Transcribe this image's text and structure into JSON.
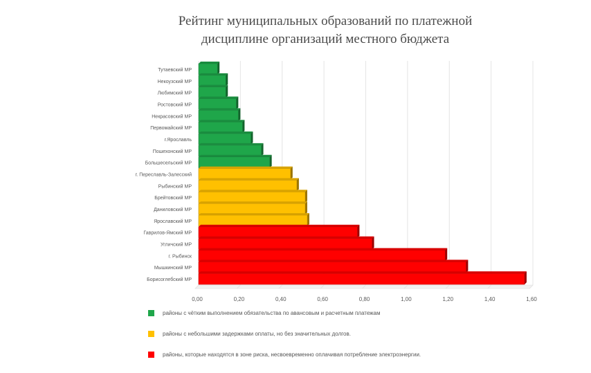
{
  "colors": {
    "green": "#1fa64a",
    "yellow": "#ffc000",
    "red": "#ff0000",
    "axis_text": "#595959",
    "grid": "#e4e4e4"
  },
  "chart_data": {
    "type": "bar",
    "orientation": "horizontal",
    "style": "3d",
    "title": "Рейтинг муниципальных образований по платежной дисциплине организаций местного бюджета",
    "title_lines": [
      "Рейтинг муниципальных образований по платежной",
      "дисциплине организаций местного бюджета"
    ],
    "categories": [
      "Тутаевский МР",
      "Некоузский МР",
      "Любимский МР",
      "Ростовский МР",
      "Некрасовский МР",
      "Первомайский МР",
      "г.Ярославль",
      "Пошехонский МР",
      "Большесельский МР",
      "г. Переславль-Залесский",
      "Рыбинский МР",
      "Брейтовский МР",
      "Даниловский МР",
      "Ярославский МР",
      "Гаврилов-Ямский МР",
      "Угличский МР",
      "г. Рыбинск",
      "Мышкинский МР",
      "Борисоглебский МР"
    ],
    "values": [
      0.09,
      0.13,
      0.13,
      0.18,
      0.19,
      0.21,
      0.25,
      0.3,
      0.34,
      0.44,
      0.47,
      0.51,
      0.51,
      0.52,
      0.76,
      0.83,
      1.18,
      1.28,
      1.56
    ],
    "groups": [
      "green",
      "green",
      "green",
      "green",
      "green",
      "green",
      "green",
      "green",
      "green",
      "yellow",
      "yellow",
      "yellow",
      "yellow",
      "yellow",
      "red",
      "red",
      "red",
      "red",
      "red"
    ],
    "xlim": [
      0,
      1.6
    ],
    "x_ticks": [
      "0,00",
      "0,20",
      "0,40",
      "0,60",
      "0,80",
      "1,00",
      "1,20",
      "1,40",
      "1,60"
    ],
    "grid": true,
    "legend_position": "bottom",
    "legend": [
      {
        "group": "green",
        "label": "районы с чётким выполнением обязательства по авансовым и расчетным платежам"
      },
      {
        "group": "yellow",
        "label": "районы с небольшими задержками оплаты, но без значительных долгов."
      },
      {
        "group": "red",
        "label": "районы, которые находятся в зоне риска, несвоевременно оплачивая потребление электроэнергии."
      }
    ]
  }
}
